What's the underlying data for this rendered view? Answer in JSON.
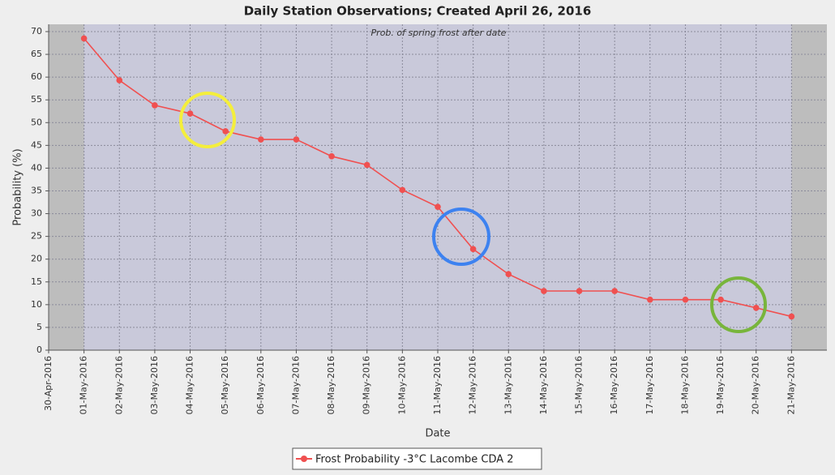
{
  "chart_data": {
    "type": "line",
    "title": "Daily Station Observations; Created April 26, 2016",
    "annotation": "Prob. of spring frost after date",
    "x_label": "Date",
    "y_label": "Probability (%)",
    "categories": [
      "30-Apr-2016",
      "01-May-2016",
      "02-May-2016",
      "03-May-2016",
      "04-May-2016",
      "05-May-2016",
      "06-May-2016",
      "07-May-2016",
      "08-May-2016",
      "09-May-2016",
      "10-May-2016",
      "11-May-2016",
      "12-May-2016",
      "13-May-2016",
      "14-May-2016",
      "15-May-2016",
      "16-May-2016",
      "17-May-2016",
      "18-May-2016",
      "19-May-2016",
      "20-May-2016",
      "21-May-2016"
    ],
    "series": [
      {
        "name": "Frost Probability -3°C Lacombe CDA 2",
        "color": "#f05050",
        "values": [
          null,
          68.5,
          59.3,
          53.8,
          52,
          48.1,
          46.3,
          46.3,
          42.6,
          40.7,
          35.2,
          31.5,
          22.2,
          16.7,
          13,
          13,
          13,
          11.1,
          11.1,
          11.1,
          9.3,
          7.4
        ]
      }
    ],
    "ylim": [
      0,
      71.6
    ],
    "yticks": [
      0,
      5,
      10,
      15,
      20,
      25,
      30,
      35,
      40,
      45,
      50,
      55,
      60,
      65,
      70
    ],
    "grid": true,
    "legend": "bottom"
  }
}
